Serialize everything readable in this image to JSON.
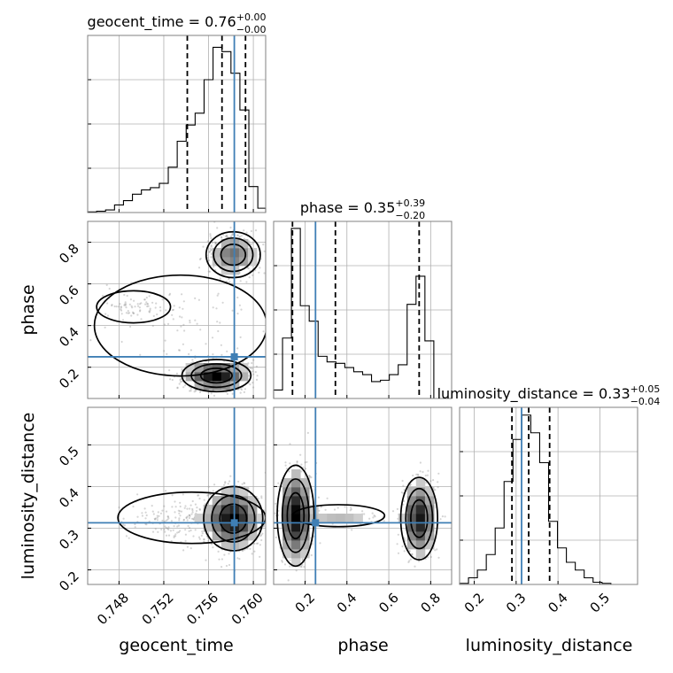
{
  "chart_data": {
    "type": "corner",
    "parameters": [
      "geocent_time",
      "phase",
      "luminosity_distance"
    ],
    "truths": {
      "geocent_time": 0.7583,
      "phase": 0.25,
      "luminosity_distance": 0.313
    },
    "ranges": {
      "geocent_time": [
        0.7452,
        0.7611
      ],
      "phase": [
        0.05,
        0.9
      ],
      "luminosity_distance": [
        0.165,
        0.59
      ]
    },
    "ticks": {
      "geocent_time": {
        "values": [
          0.748,
          0.752,
          0.756,
          0.76
        ],
        "labels": [
          "0.748",
          "0.752",
          "0.756",
          "0.760"
        ]
      },
      "phase_x": {
        "values": [
          0.2,
          0.4,
          0.6,
          0.8
        ],
        "labels": [
          "0.2",
          "0.4",
          "0.6",
          "0.8"
        ]
      },
      "phase_y": {
        "values": [
          0.2,
          0.4,
          0.6,
          0.8
        ],
        "labels": [
          "0.2",
          "0.4",
          "0.6",
          "0.8"
        ]
      },
      "luminosity_distance": {
        "values": [
          0.2,
          0.3,
          0.4,
          0.5
        ],
        "labels": [
          "0.2",
          "0.3",
          "0.4",
          "0.5"
        ]
      }
    },
    "titles": {
      "geocent_time": {
        "main": "geocent_time = 0.76",
        "plus": "+0.00",
        "minus": "−0.00"
      },
      "phase": {
        "main": "phase = 0.35",
        "plus": "+0.39",
        "minus": "−0.20"
      },
      "luminosity_distance": {
        "main": "luminosity_distance = 0.33",
        "plus": "+0.05",
        "minus": "−0.04"
      }
    },
    "axis_labels": {
      "x": [
        "geocent_time",
        "phase",
        "luminosity_distance"
      ],
      "y": [
        "phase",
        "luminosity_distance"
      ]
    },
    "quantiles": {
      "geocent_time": [
        0.7541,
        0.7572,
        0.7593
      ],
      "phase": [
        0.14,
        0.345,
        0.745
      ],
      "luminosity_distance": [
        0.29,
        0.33,
        0.38
      ]
    },
    "histograms": {
      "geocent_time": {
        "edges": [
          0.7452,
          0.746,
          0.7468,
          0.7476,
          0.7484,
          0.7492,
          0.75,
          0.7508,
          0.7516,
          0.7524,
          0.7532,
          0.754,
          0.7548,
          0.7556,
          0.7564,
          0.7572,
          0.758,
          0.7588,
          0.7596,
          0.7604,
          0.7611
        ],
        "counts": [
          0.3,
          0.6,
          1.2,
          3.5,
          5.5,
          8.5,
          10.5,
          11.5,
          13.5,
          21,
          33,
          40.5,
          46,
          61.5,
          76.5,
          74.5,
          64.5,
          47.5,
          12,
          2
        ]
      },
      "phase": {
        "edges": [
          0.05,
          0.0925,
          0.135,
          0.1775,
          0.22,
          0.2625,
          0.305,
          0.3475,
          0.39,
          0.4325,
          0.475,
          0.5175,
          0.56,
          0.6025,
          0.645,
          0.6875,
          0.73,
          0.7725,
          0.815,
          0.8575,
          0.9
        ],
        "counts": [
          3,
          21.5,
          60.5,
          33,
          27.5,
          15,
          13,
          12.5,
          11,
          9.5,
          8.5,
          6,
          6.5,
          8.5,
          12,
          33.5,
          43.5,
          20.5,
          0,
          0
        ]
      },
      "luminosity_distance": {
        "edges": [
          0.165,
          0.18625,
          0.2075,
          0.22875,
          0.25,
          0.27125,
          0.2925,
          0.31375,
          0.335,
          0.35625,
          0.3775,
          0.39875,
          0.42,
          0.44125,
          0.4625,
          0.48375,
          0.505,
          0.52625,
          0.5475,
          0.56875,
          0.59
        ],
        "counts": [
          0.5,
          3,
          6.5,
          13.5,
          25.5,
          46.5,
          65.5,
          76.5,
          68.5,
          55,
          28.5,
          16.5,
          10,
          6.5,
          3,
          1,
          0.5,
          0,
          0,
          0
        ]
      }
    },
    "joint_modes": {
      "geocent_time_vs_phase": [
        {
          "x": 0.7567,
          "y": 0.16,
          "sx": 0.0014,
          "sy": 0.035,
          "w": 1.0
        },
        {
          "x": 0.7582,
          "y": 0.74,
          "sx": 0.0011,
          "sy": 0.05,
          "w": 0.55
        },
        {
          "x": 0.7535,
          "y": 0.4,
          "sx": 0.0035,
          "sy": 0.11,
          "w": 0.1
        },
        {
          "x": 0.7493,
          "y": 0.49,
          "sx": 0.0015,
          "sy": 0.035,
          "w": 0.08
        }
      ],
      "geocent_time_vs_luminosity_distance": [
        {
          "x": 0.7582,
          "y": 0.323,
          "sx": 0.0012,
          "sy": 0.035,
          "w": 1.0
        },
        {
          "x": 0.7545,
          "y": 0.325,
          "sx": 0.003,
          "sy": 0.028,
          "w": 0.18
        }
      ],
      "phase_vs_luminosity_distance": [
        {
          "x": 0.155,
          "y": 0.33,
          "sx": 0.04,
          "sy": 0.055,
          "w": 1.0
        },
        {
          "x": 0.745,
          "y": 0.323,
          "sx": 0.04,
          "sy": 0.045,
          "w": 0.75
        },
        {
          "x": 0.36,
          "y": 0.33,
          "sx": 0.1,
          "sy": 0.012,
          "w": 0.12
        }
      ]
    }
  }
}
